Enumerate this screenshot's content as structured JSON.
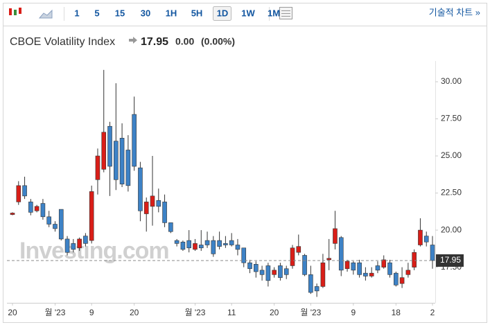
{
  "toolbar": {
    "intervals": [
      "1",
      "5",
      "15",
      "30",
      "1H",
      "5H",
      "1D",
      "1W",
      "1M"
    ],
    "active": 6,
    "link": "기술적 차트 »"
  },
  "chart_data": {
    "type": "candlestick",
    "title": "CBOE Volatility Index",
    "last_price": 17.95,
    "change": "0.00",
    "change_pct": "(0.00%)",
    "watermark": "Investing.com",
    "categories": [
      "20",
      null,
      null,
      null,
      null,
      null,
      null,
      "월 '23",
      null,
      null,
      null,
      null,
      null,
      "9",
      null,
      null,
      null,
      null,
      null,
      null,
      "20",
      null,
      null,
      null,
      null,
      null,
      null,
      null,
      null,
      null,
      "월 '23",
      null,
      null,
      null,
      null,
      null,
      "11",
      null,
      null,
      null,
      null,
      null,
      null,
      "20",
      null,
      null,
      null,
      null,
      null,
      "월 '23",
      null,
      null,
      null,
      null,
      null,
      null,
      "9",
      null,
      null,
      null,
      null,
      null,
      null,
      "18",
      null,
      null,
      null,
      null,
      null,
      "2"
    ],
    "open": [
      21.05,
      21.9,
      23.0,
      21.9,
      21.3,
      21.8,
      20.9,
      20.4,
      21.4,
      19.4,
      19.1,
      18.8,
      19.6,
      19.3,
      23.4,
      24.1,
      27.0,
      26.0,
      26.2,
      25.4,
      27.8,
      24.2,
      21.1,
      21.6,
      22.0,
      21.9,
      20.5,
      19.3,
      19.2,
      19.3,
      18.7,
      19.0,
      19.3,
      19.3,
      19.3,
      19.1,
      19.3,
      19.0,
      18.8,
      17.8,
      17.7,
      17.3,
      17.6,
      17.0,
      17.6,
      17.4,
      17.6,
      18.5,
      18.3,
      17.0,
      16.2,
      16.2,
      18.0,
      19.1,
      19.5,
      17.4,
      17.8,
      17.8,
      17.1,
      16.9,
      17.6,
      17.5,
      17.8,
      17.1,
      16.4,
      17.0,
      17.5,
      19.0,
      19.6,
      19.0
    ],
    "high": [
      21.2,
      23.3,
      23.6,
      22.1,
      21.7,
      22.1,
      21.3,
      20.6,
      21.4,
      19.6,
      19.4,
      19.5,
      19.8,
      23.0,
      25.5,
      30.8,
      27.3,
      29.9,
      27.2,
      26.4,
      29.0,
      24.6,
      22.2,
      25.0,
      22.8,
      22.4,
      20.5,
      19.4,
      19.3,
      20.0,
      19.4,
      20.0,
      19.9,
      19.6,
      19.9,
      19.6,
      19.8,
      19.4,
      18.8,
      18.0,
      17.9,
      17.6,
      17.8,
      17.5,
      17.8,
      17.6,
      19.0,
      19.7,
      18.4,
      17.6,
      16.4,
      18.4,
      19.4,
      21.3,
      19.6,
      18.0,
      17.9,
      18.0,
      17.5,
      17.5,
      17.9,
      18.3,
      18.0,
      17.2,
      17.5,
      17.8,
      18.7,
      20.8,
      19.9,
      19.6
    ],
    "low": [
      21.0,
      21.7,
      22.1,
      21.0,
      21.2,
      20.7,
      20.2,
      19.9,
      19.3,
      18.3,
      18.5,
      18.6,
      18.9,
      19.1,
      22.4,
      23.9,
      22.3,
      22.7,
      22.9,
      22.6,
      24.0,
      20.6,
      19.9,
      20.3,
      21.2,
      20.2,
      19.8,
      18.9,
      18.6,
      18.5,
      18.6,
      18.6,
      18.8,
      18.2,
      18.7,
      18.8,
      18.9,
      18.3,
      17.5,
      17.1,
      16.8,
      16.6,
      16.2,
      16.8,
      16.6,
      16.7,
      17.4,
      18.3,
      16.9,
      15.7,
      15.5,
      16.1,
      17.3,
      18.7,
      16.9,
      17.2,
      17.0,
      16.8,
      16.6,
      16.8,
      17.1,
      17.4,
      16.8,
      16.2,
      16.1,
      16.8,
      17.3,
      18.9,
      18.9,
      17.4
    ],
    "close": [
      21.15,
      23.0,
      22.3,
      21.2,
      21.6,
      20.9,
      20.4,
      20.1,
      19.4,
      18.5,
      18.7,
      19.4,
      19.1,
      22.6,
      25.0,
      26.6,
      24.3,
      23.4,
      23.1,
      23.0,
      24.3,
      21.3,
      21.9,
      22.3,
      21.6,
      20.5,
      19.9,
      19.1,
      18.7,
      18.8,
      19.1,
      18.8,
      19.0,
      18.4,
      18.9,
      19.0,
      19.0,
      18.7,
      17.8,
      17.4,
      17.2,
      17.0,
      16.6,
      17.3,
      16.8,
      17.0,
      18.8,
      18.9,
      17.0,
      15.8,
      15.9,
      17.8,
      18.1,
      20.1,
      17.3,
      17.9,
      17.3,
      17.0,
      16.9,
      17.1,
      17.3,
      18.0,
      17.0,
      16.3,
      16.8,
      17.3,
      18.5,
      20.0,
      19.2,
      17.95
    ],
    "up_color": "#d91e18",
    "down_color": "#3d82c6",
    "ylim": [
      15.1,
      31.4
    ],
    "yticks": [
      {
        "value": 17.5,
        "label": "17.50"
      },
      {
        "value": 20,
        "label": "20.00"
      },
      {
        "value": 22.5,
        "label": "22.50"
      },
      {
        "value": 25,
        "label": "25.00"
      },
      {
        "value": 27.5,
        "label": "27.50"
      },
      {
        "value": 30,
        "label": "30.00"
      }
    ]
  }
}
